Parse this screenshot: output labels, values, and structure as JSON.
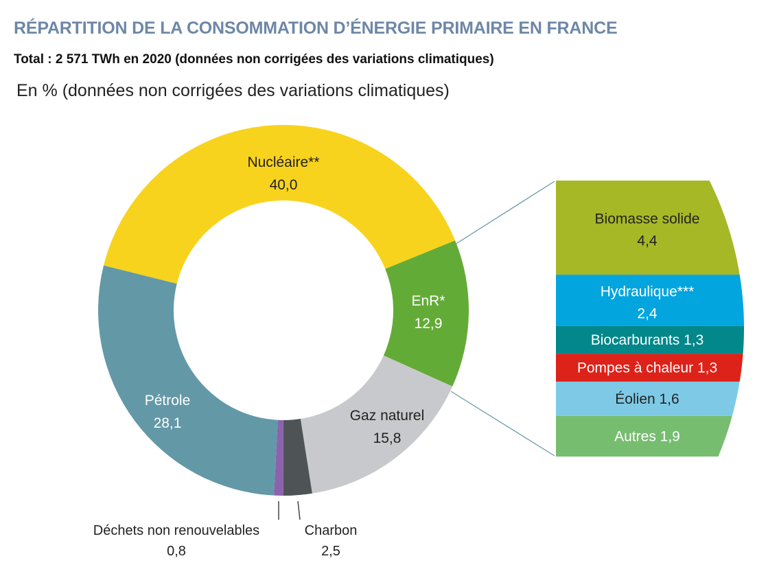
{
  "title": "RÉPARTITION DE LA CONSOMMATION D’ÉNERGIE PRIMAIRE EN FRANCE",
  "subtitle": "Total : 2 571 TWh en 2020 (données non corrigées des variations climatiques)",
  "unit_note": "En % (données non corrigées des variations climatiques)",
  "chart_data": [
    {
      "type": "pie",
      "variant": "donut",
      "direction": "clockwise",
      "slices": [
        {
          "label": "Nucléaire**",
          "value": 40.0,
          "display": "40,0",
          "color": "#f8d31e",
          "text_color": "#222"
        },
        {
          "label": "EnR*",
          "value": 12.9,
          "display": "12,9",
          "color": "#63ab37",
          "text_color": "#fff"
        },
        {
          "label": "Gaz naturel",
          "value": 15.8,
          "display": "15,8",
          "color": "#c8c9cc",
          "text_color": "#222"
        },
        {
          "label": "Charbon",
          "value": 2.5,
          "display": "2,5",
          "color": "#4e5355",
          "text_color": "#222"
        },
        {
          "label": "Déchets non renouvelables",
          "value": 0.8,
          "display": "0,8",
          "color": "#8c62ad",
          "text_color": "#222"
        },
        {
          "label": "Pétrole",
          "value": 28.1,
          "display": "28,1",
          "color": "#6398a7",
          "text_color": "#fff"
        }
      ]
    },
    {
      "type": "bar",
      "variant": "stacked-breakdown",
      "breakdown_of": "EnR*",
      "segments": [
        {
          "label": "Biomasse solide",
          "value": 4.4,
          "display": "4,4",
          "color": "#a6b826",
          "text_color": "#222"
        },
        {
          "label": "Hydraulique***",
          "value": 2.4,
          "display": "2,4",
          "color": "#03a5df",
          "text_color": "#fff"
        },
        {
          "label": "Biocarburants",
          "value": 1.3,
          "display": "1,3",
          "color": "#02878a",
          "text_color": "#fff"
        },
        {
          "label": "Pompes à chaleur",
          "value": 1.3,
          "display": "1,3",
          "color": "#dd2219",
          "text_color": "#fff"
        },
        {
          "label": "Éolien",
          "value": 1.6,
          "display": "1,6",
          "color": "#7ecae6",
          "text_color": "#222"
        },
        {
          "label": "Autres",
          "value": 1.9,
          "display": "1,9",
          "color": "#77bd70",
          "text_color": "#fff"
        }
      ]
    }
  ]
}
